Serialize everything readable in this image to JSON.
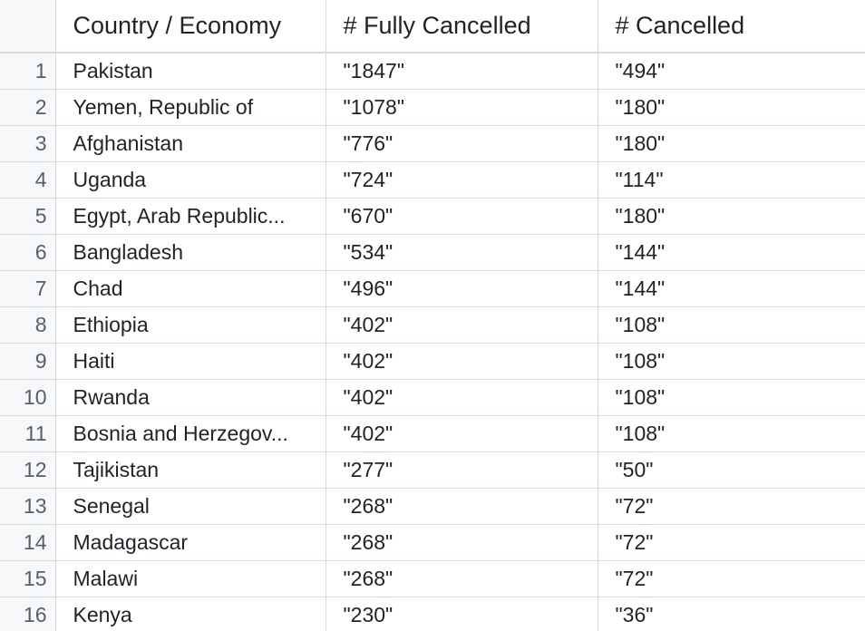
{
  "table": {
    "columns": [
      "",
      "Country / Economy",
      "# Fully Cancelled",
      "# Cancelled"
    ],
    "rows": [
      {
        "index": "1",
        "country": "Pakistan",
        "fully_cancelled": "\"1847\"",
        "cancelled": "\"494\""
      },
      {
        "index": "2",
        "country": "Yemen, Republic of",
        "fully_cancelled": "\"1078\"",
        "cancelled": "\"180\""
      },
      {
        "index": "3",
        "country": "Afghanistan",
        "fully_cancelled": "\"776\"",
        "cancelled": "\"180\""
      },
      {
        "index": "4",
        "country": "Uganda",
        "fully_cancelled": "\"724\"",
        "cancelled": "\"114\""
      },
      {
        "index": "5",
        "country": "Egypt, Arab Republic...",
        "fully_cancelled": "\"670\"",
        "cancelled": "\"180\""
      },
      {
        "index": "6",
        "country": "Bangladesh",
        "fully_cancelled": "\"534\"",
        "cancelled": "\"144\""
      },
      {
        "index": "7",
        "country": "Chad",
        "fully_cancelled": "\"496\"",
        "cancelled": "\"144\""
      },
      {
        "index": "8",
        "country": "Ethiopia",
        "fully_cancelled": "\"402\"",
        "cancelled": "\"108\""
      },
      {
        "index": "9",
        "country": "Haiti",
        "fully_cancelled": "\"402\"",
        "cancelled": "\"108\""
      },
      {
        "index": "10",
        "country": "Rwanda",
        "fully_cancelled": "\"402\"",
        "cancelled": "\"108\""
      },
      {
        "index": "11",
        "country": "Bosnia and Herzegov...",
        "fully_cancelled": "\"402\"",
        "cancelled": "\"108\""
      },
      {
        "index": "12",
        "country": "Tajikistan",
        "fully_cancelled": "\"277\"",
        "cancelled": "\"50\""
      },
      {
        "index": "13",
        "country": "Senegal",
        "fully_cancelled": "\"268\"",
        "cancelled": "\"72\""
      },
      {
        "index": "14",
        "country": "Madagascar",
        "fully_cancelled": "\"268\"",
        "cancelled": "\"72\""
      },
      {
        "index": "15",
        "country": "Malawi",
        "fully_cancelled": "\"268\"",
        "cancelled": "\"72\""
      },
      {
        "index": "16",
        "country": "Kenya",
        "fully_cancelled": "\"230\"",
        "cancelled": "\"36\""
      }
    ]
  },
  "colors": {
    "grid_line": "#d7dadd",
    "index_column_bg": "#f6f8fa",
    "index_text": "#57606a",
    "text": "#1f2328"
  }
}
